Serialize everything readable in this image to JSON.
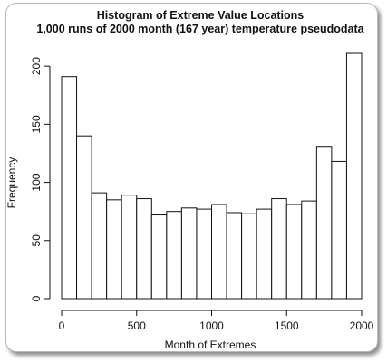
{
  "chart_data": {
    "type": "bar",
    "title": "Histogram of Extreme Value Locations",
    "subtitle": "1,000 runs of 2000 month (167 year) temperature pseudodata",
    "xlabel": "Month of Extremes",
    "ylabel": "Frequency",
    "bin_width": 100,
    "bin_starts": [
      0,
      100,
      200,
      300,
      400,
      500,
      600,
      700,
      800,
      900,
      1000,
      1100,
      1200,
      1300,
      1400,
      1500,
      1600,
      1700,
      1800,
      1900
    ],
    "values": [
      191,
      140,
      91,
      85,
      89,
      86,
      72,
      75,
      78,
      77,
      81,
      74,
      73,
      77,
      86,
      81,
      84,
      131,
      118,
      211
    ],
    "xlim": [
      0,
      2000
    ],
    "ylim": [
      0,
      211
    ],
    "xticks": [
      0,
      500,
      1000,
      1500,
      2000
    ],
    "xtick_labels": [
      "0",
      "500",
      "1000",
      "1500",
      "2000"
    ],
    "yticks": [
      0,
      50,
      100,
      150,
      200
    ],
    "ytick_labels": [
      "0",
      "50",
      "100",
      "150",
      "200"
    ],
    "grid": false,
    "bar_fill": "#ffffff",
    "bar_stroke": "#111111"
  }
}
